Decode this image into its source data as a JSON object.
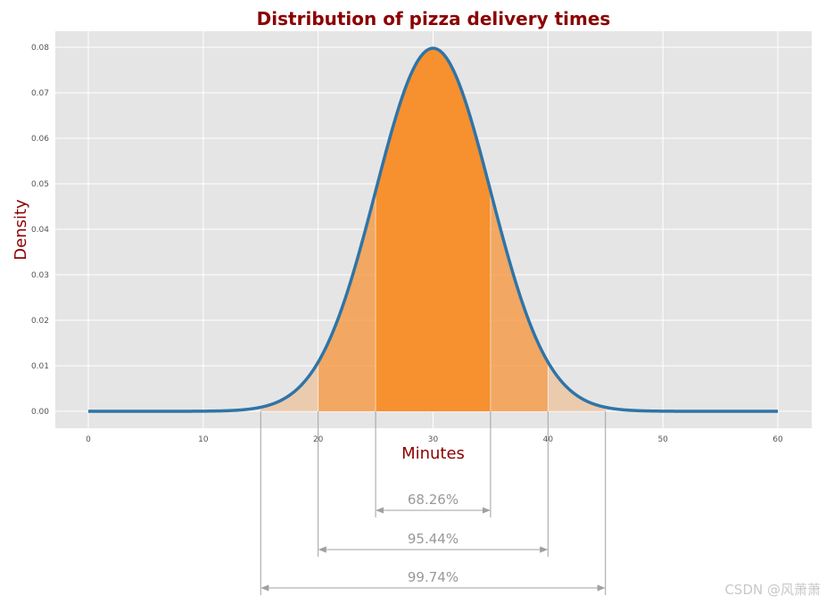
{
  "chart_data": {
    "type": "area",
    "title": "Distribution of pizza delivery times",
    "xlabel": "Minutes",
    "ylabel": "Density",
    "distribution": {
      "name": "normal",
      "mean": 30,
      "std": 5
    },
    "xlim": [
      0,
      60
    ],
    "ylim": [
      0,
      0.08
    ],
    "xticks": [
      0,
      10,
      20,
      30,
      40,
      50,
      60
    ],
    "yticks": [
      0.0,
      0.01,
      0.02,
      0.03,
      0.04,
      0.05,
      0.06,
      0.07,
      0.08
    ],
    "grid": true,
    "bands": [
      {
        "from": 25,
        "to": 35,
        "label": "68.26%",
        "color": "#f7902f",
        "opacity": 1.0
      },
      {
        "from": 20,
        "to": 40,
        "label": "95.44%",
        "color": "#f7902f",
        "opacity": 0.6
      },
      {
        "from": 15,
        "to": 45,
        "label": "99.74%",
        "color": "#f7902f",
        "opacity": 0.3
      }
    ],
    "curve_color": "#2f74a7",
    "background": "#e5e5e5"
  },
  "watermark": "CSDN @风萧萧"
}
